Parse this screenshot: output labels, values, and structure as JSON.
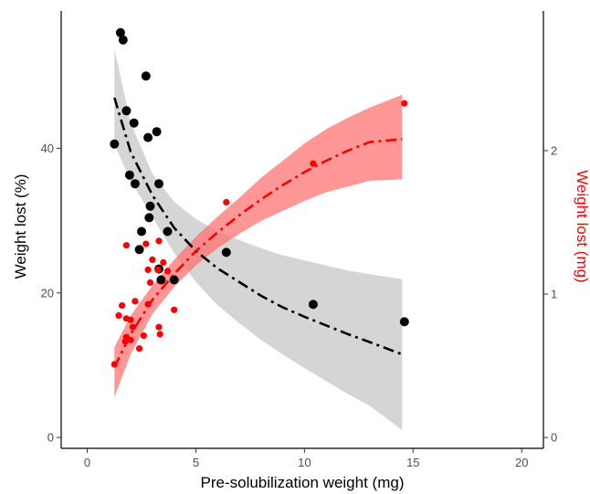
{
  "chart_data": {
    "type": "scatter",
    "xlabel": "Pre-solubilization weight (mg)",
    "ylabel_left": "Weight lost (%)",
    "ylabel_right": "Weight lost (mg)",
    "xlim": [
      -1.2,
      21.0
    ],
    "ylim_left": [
      -1.5,
      59.0
    ],
    "ylim_right": [
      -0.0756,
      2.974
    ],
    "x_ticks": [
      0,
      5,
      10,
      15,
      20
    ],
    "y_left_ticks": [
      0,
      20,
      40
    ],
    "y_right_ticks": [
      0,
      1,
      2
    ],
    "grid": false,
    "colors": {
      "percent": "#000000",
      "mg": "#ff0000",
      "ribbon_percent": "#bebebe",
      "ribbon_mg": "#ff6b6b"
    },
    "series": [
      {
        "axis": "left",
        "color": "#000000",
        "points": [
          [
            1.53,
            56.0
          ],
          [
            1.65,
            55.0
          ],
          [
            2.7,
            50.0
          ],
          [
            1.8,
            45.2
          ],
          [
            2.15,
            43.5
          ],
          [
            2.8,
            41.5
          ],
          [
            3.2,
            42.3
          ],
          [
            1.25,
            40.6
          ],
          [
            1.95,
            36.3
          ],
          [
            2.2,
            35.1
          ],
          [
            3.3,
            35.1
          ],
          [
            2.9,
            32.0
          ],
          [
            2.85,
            30.4
          ],
          [
            3.7,
            28.5
          ],
          [
            2.5,
            28.5
          ],
          [
            2.4,
            26.0
          ],
          [
            6.4,
            25.6
          ],
          [
            3.3,
            23.3
          ],
          [
            3.4,
            21.8
          ],
          [
            4.0,
            21.8
          ],
          [
            10.4,
            18.4
          ],
          [
            14.6,
            16.0
          ]
        ],
        "fit": [
          [
            1.25,
            47.0
          ],
          [
            2.0,
            39.5
          ],
          [
            3.0,
            33.5
          ],
          [
            4.0,
            29.0
          ],
          [
            5.0,
            25.8
          ],
          [
            6.0,
            23.4
          ],
          [
            7.0,
            21.5
          ],
          [
            8.0,
            19.6
          ],
          [
            9.0,
            18.0
          ],
          [
            10.0,
            16.7
          ],
          [
            11.0,
            15.5
          ],
          [
            12.0,
            14.3
          ],
          [
            13.0,
            13.2
          ],
          [
            14.5,
            11.5
          ]
        ],
        "band_lower": [
          [
            1.25,
            40.5
          ],
          [
            2.0,
            35.5
          ],
          [
            3.0,
            30.5
          ],
          [
            4.0,
            25.5
          ],
          [
            5.0,
            21.5
          ],
          [
            6.0,
            18.3
          ],
          [
            7.0,
            15.8
          ],
          [
            8.0,
            13.5
          ],
          [
            9.0,
            11.5
          ],
          [
            10.0,
            9.6
          ],
          [
            11.0,
            7.8
          ],
          [
            12.0,
            6.0
          ],
          [
            13.0,
            4.4
          ],
          [
            14.5,
            1.0
          ]
        ],
        "band_upper": [
          [
            1.25,
            53.7
          ],
          [
            2.0,
            43.5
          ],
          [
            3.0,
            36.5
          ],
          [
            4.0,
            32.6
          ],
          [
            5.0,
            30.2
          ],
          [
            6.0,
            28.5
          ],
          [
            7.0,
            27.3
          ],
          [
            8.0,
            26.2
          ],
          [
            9.0,
            25.2
          ],
          [
            10.0,
            24.5
          ],
          [
            11.0,
            23.8
          ],
          [
            12.0,
            23.1
          ],
          [
            13.0,
            22.6
          ],
          [
            14.5,
            21.9
          ]
        ]
      },
      {
        "axis": "right",
        "color": "#ff0000",
        "points": [
          [
            14.6,
            2.33
          ],
          [
            10.4,
            1.91
          ],
          [
            6.4,
            1.64
          ],
          [
            3.3,
            1.37
          ],
          [
            2.7,
            1.35
          ],
          [
            1.8,
            1.34
          ],
          [
            3.0,
            1.24
          ],
          [
            3.5,
            1.22
          ],
          [
            3.25,
            1.17
          ],
          [
            2.8,
            1.17
          ],
          [
            3.7,
            1.16
          ],
          [
            2.9,
            1.08
          ],
          [
            2.2,
            0.95
          ],
          [
            2.8,
            0.93
          ],
          [
            1.6,
            0.92
          ],
          [
            4.0,
            0.89
          ],
          [
            1.45,
            0.85
          ],
          [
            1.8,
            0.83
          ],
          [
            2.0,
            0.82
          ],
          [
            2.1,
            0.77
          ],
          [
            3.3,
            0.77
          ],
          [
            3.35,
            0.72
          ],
          [
            2.6,
            0.71
          ],
          [
            1.8,
            0.7
          ],
          [
            2.0,
            0.68
          ],
          [
            1.75,
            0.67
          ],
          [
            2.4,
            0.62
          ],
          [
            1.25,
            0.51
          ]
        ],
        "fit": [
          [
            1.25,
            0.49
          ],
          [
            2.0,
            0.72
          ],
          [
            3.0,
            0.96
          ],
          [
            4.0,
            1.14
          ],
          [
            5.0,
            1.3
          ],
          [
            6.0,
            1.43
          ],
          [
            7.0,
            1.55
          ],
          [
            8.0,
            1.66
          ],
          [
            9.0,
            1.76
          ],
          [
            10.0,
            1.85
          ],
          [
            11.0,
            1.93
          ],
          [
            12.0,
            2.0
          ],
          [
            13.0,
            2.06
          ],
          [
            14.5,
            2.08
          ]
        ],
        "band_lower": [
          [
            1.25,
            0.28
          ],
          [
            2.0,
            0.58
          ],
          [
            3.0,
            0.86
          ],
          [
            4.0,
            1.05
          ],
          [
            5.0,
            1.2
          ],
          [
            6.0,
            1.32
          ],
          [
            7.0,
            1.42
          ],
          [
            8.0,
            1.51
          ],
          [
            9.0,
            1.58
          ],
          [
            10.0,
            1.65
          ],
          [
            11.0,
            1.71
          ],
          [
            12.0,
            1.75
          ],
          [
            13.0,
            1.79
          ],
          [
            14.5,
            1.8
          ]
        ],
        "band_upper": [
          [
            1.25,
            0.63
          ],
          [
            2.0,
            0.85
          ],
          [
            3.0,
            1.06
          ],
          [
            4.0,
            1.24
          ],
          [
            5.0,
            1.4
          ],
          [
            6.0,
            1.54
          ],
          [
            7.0,
            1.67
          ],
          [
            8.0,
            1.81
          ],
          [
            9.0,
            1.93
          ],
          [
            10.0,
            2.05
          ],
          [
            11.0,
            2.15
          ],
          [
            12.0,
            2.23
          ],
          [
            13.0,
            2.3
          ],
          [
            14.5,
            2.39
          ]
        ]
      }
    ]
  }
}
